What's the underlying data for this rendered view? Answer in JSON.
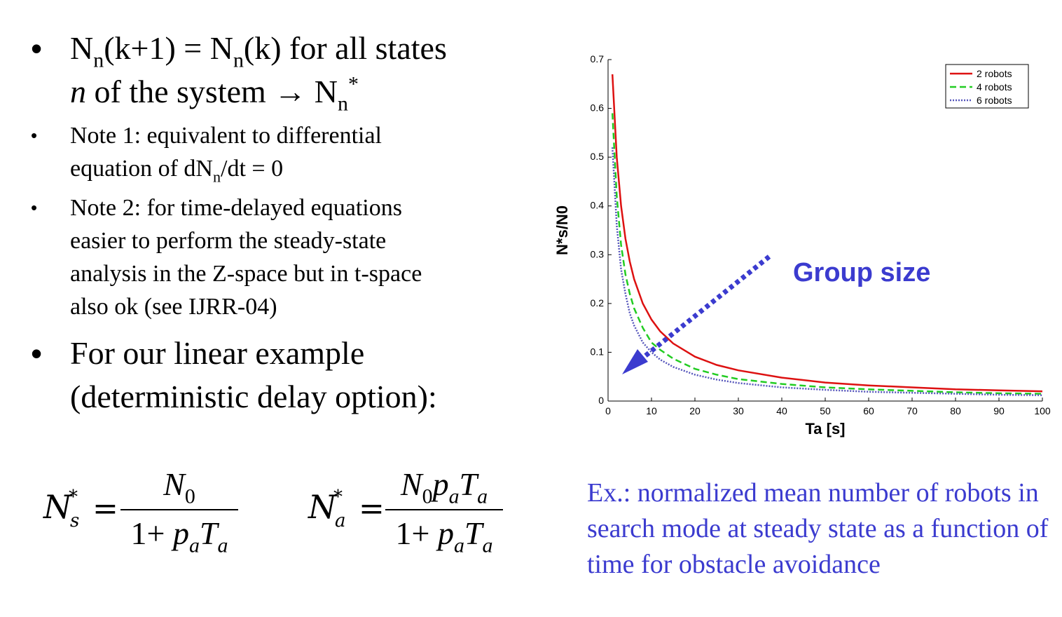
{
  "bullets": {
    "b1_line1_a": "N",
    "b1_line1_sub1": "n",
    "b1_line1_b": "(k+1) = N",
    "b1_line1_sub2": "n",
    "b1_line1_c": "(k) for all states",
    "b1_line2_a": "n",
    "b1_line2_b": " of the system → N",
    "b1_line2_sub": "n",
    "b1_line2_sup": "*",
    "b2_line1": "Note 1: equivalent to differential",
    "b2_line2_a": "equation of dN",
    "b2_line2_sub": "n",
    "b2_line2_b": "/dt = 0",
    "b3_line1": "Note 2: for time-delayed equations",
    "b3_line2": "easier to perform the steady-state",
    "b3_line3": "analysis in the Z-space but in t-space",
    "b3_line4": "also ok (see IJRR-04)",
    "b4_line1": "For our linear example",
    "b4_line2": "(deterministic delay option):",
    "marker": "•"
  },
  "equations": {
    "eq1_lhs": "N",
    "eq1_lhs_sub": "s",
    "eq1_lhs_sup": "*",
    "eq1_eq": "=",
    "eq1_num_a": "N",
    "eq1_num_sub": "0",
    "eq1_den_a": "1+ ",
    "eq1_den_p": "p",
    "eq1_den_psub": "a",
    "eq1_den_T": "T",
    "eq1_den_Tsub": "a",
    "eq2_lhs": "N",
    "eq2_lhs_sub": "a",
    "eq2_lhs_sup": "*",
    "eq2_eq": "=",
    "eq2_num_a": "N",
    "eq2_num_sub0": "0",
    "eq2_num_p": "p",
    "eq2_num_psub": "a",
    "eq2_num_T": "T",
    "eq2_num_Tsub": "a",
    "eq2_den_a": "1+ ",
    "eq2_den_p": "p",
    "eq2_den_psub": "a",
    "eq2_den_T": "T",
    "eq2_den_Tsub": "a"
  },
  "annotation": {
    "text": "Group size",
    "color": "#3b3bcf"
  },
  "caption": {
    "text": "Ex.: normalized mean number of robots in search mode at steady state as a function of time for obstacle avoidance",
    "color": "#3b3bcf"
  },
  "chart_data": {
    "type": "line",
    "title": "",
    "xlabel": "Ta [s]",
    "ylabel": "N*s/N0",
    "xlim": [
      0,
      100
    ],
    "ylim": [
      0,
      0.7
    ],
    "xticks": [
      0,
      10,
      20,
      30,
      40,
      50,
      60,
      70,
      80,
      90,
      100
    ],
    "xtick_labels": [
      "0",
      "10",
      "20",
      "30",
      "40",
      "50",
      "60",
      "70",
      "80",
      "90",
      "100"
    ],
    "yticks": [
      0,
      0.1,
      0.2,
      0.3,
      0.4,
      0.5,
      0.6,
      0.7
    ],
    "ytick_labels": [
      "0",
      "0.1",
      "0.2",
      "0.3",
      "0.4",
      "0.5",
      "0.6",
      "0.7"
    ],
    "grid": false,
    "legend_position": "top-right",
    "x": [
      1,
      2,
      3,
      4,
      5,
      6,
      8,
      10,
      12,
      15,
      20,
      25,
      30,
      40,
      50,
      60,
      70,
      80,
      90,
      100
    ],
    "series": [
      {
        "name": "2 robots",
        "color": "#dd1111",
        "dash": "solid",
        "values": [
          0.67,
          0.5,
          0.4,
          0.333,
          0.286,
          0.25,
          0.2,
          0.167,
          0.143,
          0.118,
          0.091,
          0.074,
          0.063,
          0.048,
          0.038,
          0.032,
          0.028,
          0.024,
          0.022,
          0.02
        ]
      },
      {
        "name": "4 robots",
        "color": "#22cc22",
        "dash": "dashed",
        "values": [
          0.59,
          0.42,
          0.32,
          0.26,
          0.22,
          0.19,
          0.15,
          0.12,
          0.105,
          0.087,
          0.066,
          0.054,
          0.045,
          0.035,
          0.028,
          0.024,
          0.021,
          0.018,
          0.016,
          0.015
        ]
      },
      {
        "name": "6 robots",
        "color": "#5555bb",
        "dash": "dotted",
        "values": [
          0.52,
          0.36,
          0.27,
          0.22,
          0.18,
          0.155,
          0.12,
          0.1,
          0.085,
          0.07,
          0.054,
          0.044,
          0.037,
          0.028,
          0.023,
          0.019,
          0.017,
          0.015,
          0.013,
          0.012
        ]
      }
    ]
  }
}
